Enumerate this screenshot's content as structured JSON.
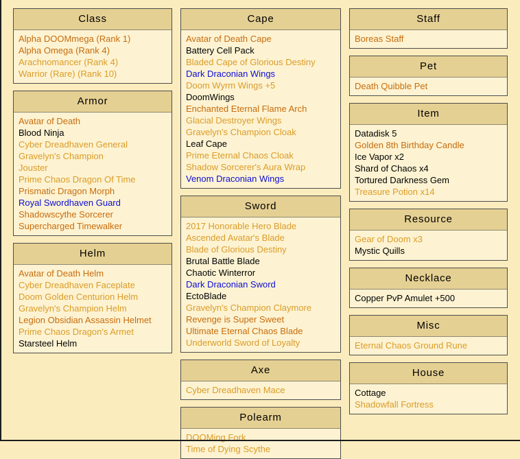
{
  "colors": {
    "dark": "#c76c0e",
    "gold": "#db9b28",
    "blue": "#0d0dd6",
    "black": "#000000",
    "page_background": "#fbecbd",
    "box_background": "#fdf3d2",
    "header_background": "#e5d093",
    "box_border": "#4c4c4c"
  },
  "columns": [
    {
      "sections": [
        {
          "title": "Class",
          "items": [
            {
              "label": "Alpha DOOMmega (Rank 1)",
              "color": "dark"
            },
            {
              "label": "Alpha Omega (Rank 4)",
              "color": "dark"
            },
            {
              "label": "Arachnomancer (Rank 4)",
              "color": "gold"
            },
            {
              "label": "Warrior (Rare) (Rank 10)",
              "color": "gold"
            }
          ]
        },
        {
          "title": "Armor",
          "items": [
            {
              "label": "Avatar of Death",
              "color": "dark"
            },
            {
              "label": "Blood Ninja",
              "color": "black"
            },
            {
              "label": "Cyber Dreadhaven General",
              "color": "gold"
            },
            {
              "label": "Gravelyn's Champion",
              "color": "gold"
            },
            {
              "label": "Jouster",
              "color": "gold"
            },
            {
              "label": "Prime Chaos Dragon Of Time",
              "color": "gold"
            },
            {
              "label": "Prismatic Dragon Morph",
              "color": "dark"
            },
            {
              "label": "Royal Swordhaven Guard",
              "color": "blue"
            },
            {
              "label": "Shadowscythe Sorcerer",
              "color": "dark"
            },
            {
              "label": "Supercharged Timewalker",
              "color": "dark"
            }
          ]
        },
        {
          "title": "Helm",
          "items": [
            {
              "label": "Avatar of Death Helm",
              "color": "dark"
            },
            {
              "label": "Cyber Dreadhaven Faceplate",
              "color": "gold"
            },
            {
              "label": "Doom Golden Centurion Helm",
              "color": "gold"
            },
            {
              "label": "Gravelyn's Champion Helm",
              "color": "gold"
            },
            {
              "label": "Legion Obsidian Assassin Helmet",
              "color": "dark"
            },
            {
              "label": "Prime Chaos Dragon's Armet",
              "color": "gold"
            },
            {
              "label": "Starsteel Helm",
              "color": "black"
            }
          ]
        }
      ]
    },
    {
      "sections": [
        {
          "title": "Cape",
          "items": [
            {
              "label": "Avatar of Death Cape",
              "color": "dark"
            },
            {
              "label": "Battery Cell Pack",
              "color": "black"
            },
            {
              "label": "Bladed Cape of Glorious Destiny",
              "color": "gold"
            },
            {
              "label": "Dark Draconian Wings",
              "color": "blue"
            },
            {
              "label": "Doom Wyrm Wings +5",
              "color": "gold"
            },
            {
              "label": "DoomWings",
              "color": "black"
            },
            {
              "label": "Enchanted Eternal Flame Arch",
              "color": "dark"
            },
            {
              "label": "Glacial Destroyer Wings",
              "color": "gold"
            },
            {
              "label": "Gravelyn's Champion Cloak",
              "color": "gold"
            },
            {
              "label": "Leaf Cape",
              "color": "black"
            },
            {
              "label": "Prime Eternal Chaos Cloak",
              "color": "gold"
            },
            {
              "label": "Shadow Sorcerer's Aura Wrap",
              "color": "gold"
            },
            {
              "label": "Venom Draconian Wings",
              "color": "blue"
            }
          ]
        },
        {
          "title": "Sword",
          "items": [
            {
              "label": "2017 Honorable Hero Blade",
              "color": "gold"
            },
            {
              "label": "Ascended Avatar's Blade",
              "color": "gold"
            },
            {
              "label": "Blade of Glorious Destiny",
              "color": "gold"
            },
            {
              "label": "Brutal Battle Blade",
              "color": "black"
            },
            {
              "label": "Chaotic Winterror",
              "color": "black"
            },
            {
              "label": "Dark Draconian Sword",
              "color": "blue"
            },
            {
              "label": "EctoBlade",
              "color": "black"
            },
            {
              "label": "Gravelyn's Champion Claymore",
              "color": "gold"
            },
            {
              "label": "Revenge is Super Sweet",
              "color": "dark"
            },
            {
              "label": "Ultimate Eternal Chaos Blade",
              "color": "dark"
            },
            {
              "label": "Underworld Sword of Loyalty",
              "color": "gold"
            }
          ]
        },
        {
          "title": "Axe",
          "items": [
            {
              "label": "Cyber Dreadhaven Mace",
              "color": "gold"
            }
          ]
        },
        {
          "title": "Polearm",
          "items": [
            {
              "label": "DOOMing Fork",
              "color": "gold"
            },
            {
              "label": "Time of Dying Scythe",
              "color": "gold"
            }
          ]
        }
      ]
    },
    {
      "sections": [
        {
          "title": "Staff",
          "items": [
            {
              "label": "Boreas Staff",
              "color": "dark"
            }
          ]
        },
        {
          "title": "Pet",
          "items": [
            {
              "label": "Death Quibble Pet",
              "color": "dark"
            }
          ]
        },
        {
          "title": "Item",
          "items": [
            {
              "label": "Datadisk 5",
              "color": "black"
            },
            {
              "label": "Golden 8th Birthday Candle",
              "color": "dark"
            },
            {
              "label": "Ice Vapor x2",
              "color": "black"
            },
            {
              "label": "Shard of Chaos x4",
              "color": "black"
            },
            {
              "label": "Tortured Darkness Gem",
              "color": "black"
            },
            {
              "label": "Treasure Potion x14",
              "color": "gold"
            }
          ]
        },
        {
          "title": "Resource",
          "items": [
            {
              "label": "Gear of Doom x3",
              "color": "gold"
            },
            {
              "label": "Mystic Quills",
              "color": "black"
            }
          ]
        },
        {
          "title": "Necklace",
          "items": [
            {
              "label": "Copper PvP Amulet +500",
              "color": "black"
            }
          ]
        },
        {
          "title": "Misc",
          "items": [
            {
              "label": "Eternal Chaos Ground Rune",
              "color": "gold"
            }
          ]
        },
        {
          "title": "House",
          "items": [
            {
              "label": "Cottage",
              "color": "black"
            },
            {
              "label": "Shadowfall Fortress",
              "color": "gold"
            }
          ]
        }
      ]
    }
  ]
}
